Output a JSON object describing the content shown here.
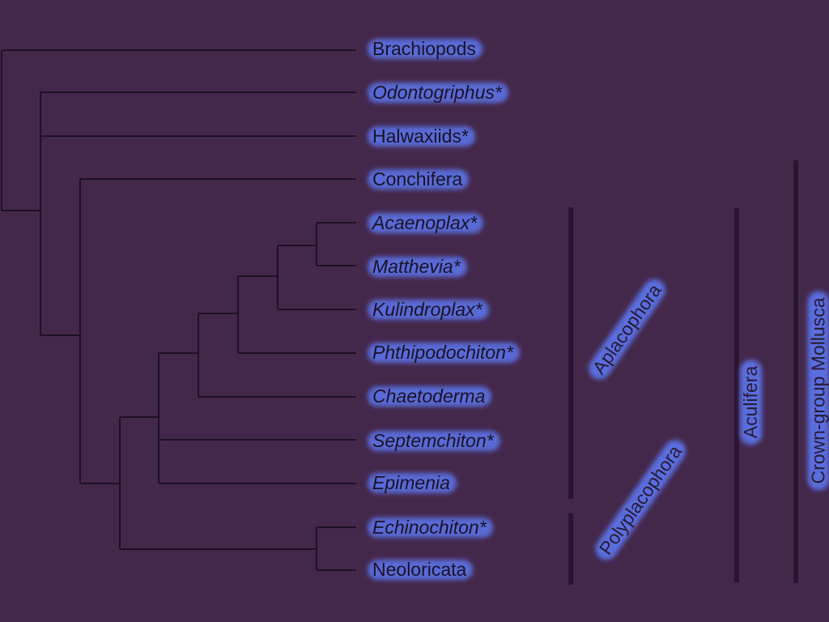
{
  "taxa": [
    {
      "name": "Brachiopods",
      "italic": false,
      "asterisk": false
    },
    {
      "name": "Odontogriphus",
      "italic": true,
      "asterisk": true
    },
    {
      "name": "Halwaxiids",
      "italic": false,
      "asterisk": true
    },
    {
      "name": "Conchifera",
      "italic": false,
      "asterisk": false
    },
    {
      "name": "Acaenoplax",
      "italic": true,
      "asterisk": true
    },
    {
      "name": "Matthevia",
      "italic": true,
      "asterisk": true
    },
    {
      "name": "Kulindroplax",
      "italic": true,
      "asterisk": true
    },
    {
      "name": "Phthipodochiton",
      "italic": true,
      "asterisk": true
    },
    {
      "name": "Chaetoderma",
      "italic": true,
      "asterisk": false
    },
    {
      "name": "Septemchiton",
      "italic": true,
      "asterisk": true
    },
    {
      "name": "Epimenia",
      "italic": true,
      "asterisk": false
    },
    {
      "name": "Echinochiton",
      "italic": true,
      "asterisk": true
    },
    {
      "name": "Neoloricata",
      "italic": false,
      "asterisk": false
    }
  ],
  "groups": {
    "aplacophora": "Aplacophora",
    "polyplacophora": "Polyplacophora",
    "aculifera": "Aculifera",
    "crown_group": "Crown-group Mollusca"
  },
  "asterisk_mark": "*",
  "colors": {
    "background": "#44284c",
    "branch": "#1d1124",
    "highlight": "#5b72e6",
    "bar": "#2a1530"
  }
}
